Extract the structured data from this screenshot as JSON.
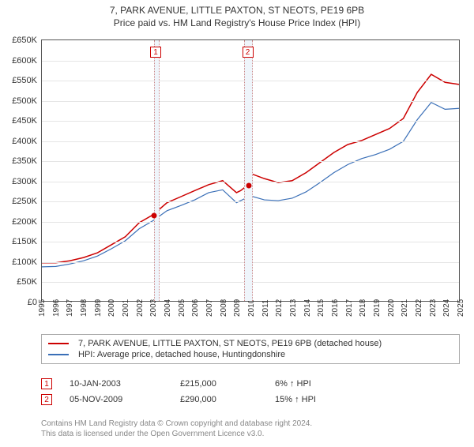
{
  "title": "7, PARK AVENUE, LITTLE PAXTON, ST NEOTS, PE19 6PB",
  "subtitle": "Price paid vs. HM Land Registry's House Price Index (HPI)",
  "chart": {
    "type": "line",
    "background_color": "#ffffff",
    "grid_color": "#e5e5e5",
    "axis_color": "#555555",
    "font_size_ticks": 11,
    "ylim": [
      0,
      650000
    ],
    "ytick_step": 50000,
    "y_tick_labels": [
      "£0",
      "£50K",
      "£100K",
      "£150K",
      "£200K",
      "£250K",
      "£300K",
      "£350K",
      "£400K",
      "£450K",
      "£500K",
      "£550K",
      "£600K",
      "£650K"
    ],
    "xlim": [
      1995,
      2025
    ],
    "x_ticks": [
      1995,
      1996,
      1997,
      1998,
      1999,
      2000,
      2001,
      2002,
      2003,
      2004,
      2005,
      2006,
      2007,
      2008,
      2009,
      2010,
      2011,
      2012,
      2013,
      2014,
      2015,
      2016,
      2017,
      2018,
      2019,
      2020,
      2021,
      2022,
      2023,
      2024,
      2025
    ],
    "series": [
      {
        "name": "7, PARK AVENUE, LITTLE PAXTON, ST NEOTS, PE19 6PB (detached house)",
        "color": "#cc0000",
        "line_width": 1.5,
        "years": [
          1995,
          1996,
          1997,
          1998,
          1999,
          2000,
          2001,
          2002,
          2003,
          2004,
          2005,
          2006,
          2007,
          2008,
          2009,
          2009.3,
          2009.85,
          2010,
          2011,
          2012,
          2013,
          2014,
          2015,
          2016,
          2017,
          2018,
          2019,
          2020,
          2021,
          2022,
          2023,
          2024,
          2025
        ],
        "values": [
          95000,
          95000,
          100000,
          108000,
          120000,
          140000,
          160000,
          195000,
          215000,
          245000,
          260000,
          275000,
          290000,
          300000,
          270000,
          275000,
          290000,
          318000,
          305000,
          295000,
          300000,
          320000,
          345000,
          370000,
          390000,
          400000,
          415000,
          430000,
          455000,
          520000,
          565000,
          545000,
          540000
        ]
      },
      {
        "name": "HPI: Average price, detached house, Huntingdonshire",
        "color": "#3a6fb7",
        "line_width": 1.2,
        "years": [
          1995,
          1996,
          1997,
          1998,
          1999,
          2000,
          2001,
          2002,
          2003,
          2004,
          2005,
          2006,
          2007,
          2008,
          2009,
          2010,
          2011,
          2012,
          2013,
          2014,
          2015,
          2016,
          2017,
          2018,
          2019,
          2020,
          2021,
          2022,
          2023,
          2024,
          2025
        ],
        "values": [
          85000,
          86000,
          92000,
          100000,
          112000,
          130000,
          150000,
          180000,
          200000,
          225000,
          238000,
          252000,
          270000,
          277000,
          245000,
          262000,
          252000,
          250000,
          256000,
          272000,
          295000,
          320000,
          340000,
          355000,
          365000,
          378000,
          398000,
          452000,
          495000,
          478000,
          480000
        ]
      }
    ],
    "shaded_bands": [
      {
        "from_year": 2003.03,
        "to_year": 2003.3,
        "color": "#eff5fb",
        "border_color": "#c88"
      },
      {
        "from_year": 2009.5,
        "to_year": 2010.0,
        "color": "#eff5fb",
        "border_color": "#c88"
      }
    ],
    "markers": [
      {
        "n": "1",
        "year": 2003.15,
        "y": 620000,
        "box_color": "#cc0000"
      },
      {
        "n": "2",
        "year": 2009.75,
        "y": 620000,
        "box_color": "#cc0000"
      }
    ],
    "end_dots": [
      {
        "year": 2003.03,
        "value": 215000,
        "color": "#cc0000"
      },
      {
        "year": 2009.85,
        "value": 290000,
        "color": "#cc0000"
      }
    ]
  },
  "legend": {
    "border_color": "#aaaaaa",
    "items": [
      {
        "color": "#cc0000",
        "label": "7, PARK AVENUE, LITTLE PAXTON, ST NEOTS, PE19 6PB (detached house)"
      },
      {
        "color": "#3a6fb7",
        "label": "HPI: Average price, detached house, Huntingdonshire"
      }
    ]
  },
  "transactions": [
    {
      "n": "1",
      "date": "10-JAN-2003",
      "price": "£215,000",
      "pct": "6% ↑ HPI"
    },
    {
      "n": "2",
      "date": "05-NOV-2009",
      "price": "£290,000",
      "pct": "15% ↑ HPI"
    }
  ],
  "footer": {
    "line1": "Contains HM Land Registry data © Crown copyright and database right 2024.",
    "line2": "This data is licensed under the Open Government Licence v3.0."
  }
}
